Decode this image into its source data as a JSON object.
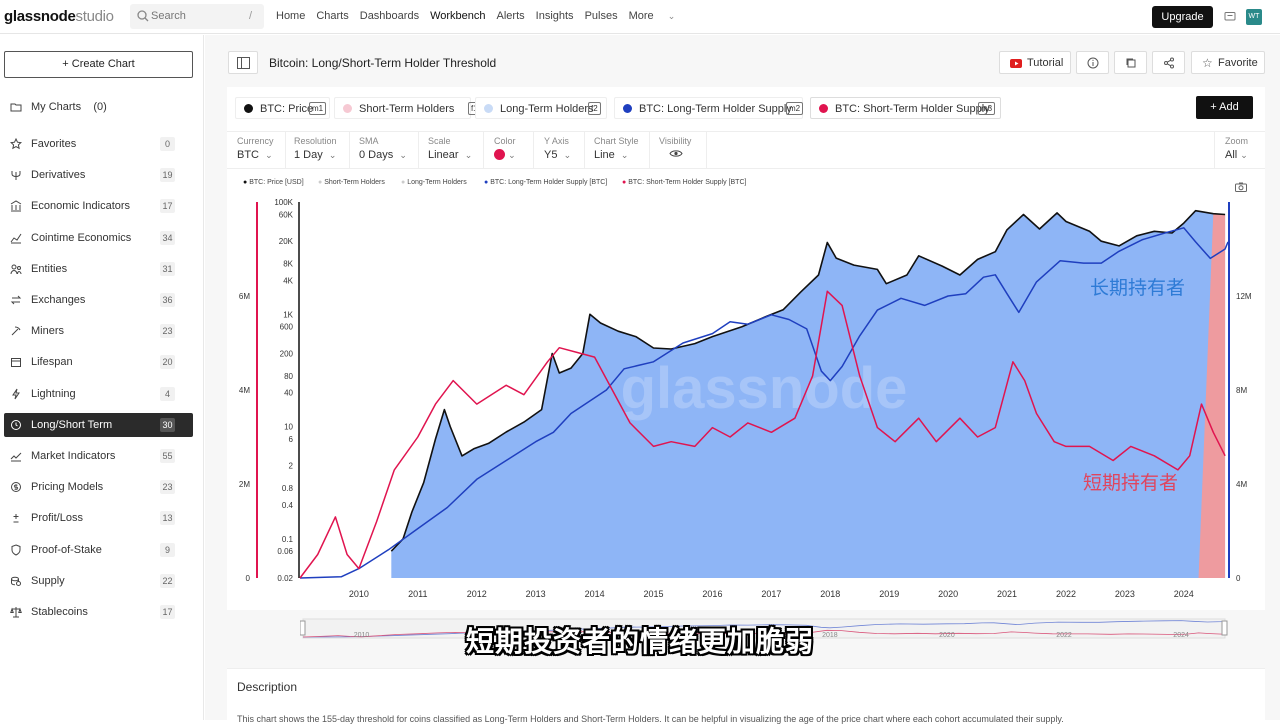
{
  "topbar": {
    "logo_main": "glassnode",
    "logo_sub": "studio",
    "search_placeholder": "Search",
    "search_shortcut": "/",
    "nav": [
      "Home",
      "Charts",
      "Dashboards",
      "Workbench",
      "Alerts",
      "Insights",
      "Pulses",
      "More"
    ],
    "upgrade_label": "Upgrade",
    "avatar_initials": "WT"
  },
  "sidebar": {
    "create_label": "+ Create Chart",
    "my_charts_label": "My Charts",
    "my_charts_count": "(0)",
    "items": [
      {
        "label": "Favorites",
        "count": "0",
        "icon": "star-icon"
      },
      {
        "label": "Derivatives",
        "count": "19",
        "icon": "trident-icon"
      },
      {
        "label": "Economic Indicators",
        "count": "17",
        "icon": "bank-icon"
      },
      {
        "label": "Cointime Economics",
        "count": "34",
        "icon": "chart-line-icon"
      },
      {
        "label": "Entities",
        "count": "31",
        "icon": "people-icon"
      },
      {
        "label": "Exchanges",
        "count": "36",
        "icon": "exchange-icon"
      },
      {
        "label": "Miners",
        "count": "23",
        "icon": "pickaxe-icon"
      },
      {
        "label": "Lifespan",
        "count": "20",
        "icon": "calendar-icon"
      },
      {
        "label": "Lightning",
        "count": "4",
        "icon": "lightning-icon"
      },
      {
        "label": "Long/Short Term",
        "count": "30",
        "icon": "clock-icon",
        "active": true
      },
      {
        "label": "Market Indicators",
        "count": "55",
        "icon": "trend-icon"
      },
      {
        "label": "Pricing Models",
        "count": "23",
        "icon": "dollar-circle-icon"
      },
      {
        "label": "Profit/Loss",
        "count": "13",
        "icon": "plus-minus-icon"
      },
      {
        "label": "Proof-of-Stake",
        "count": "9",
        "icon": "shield-icon"
      },
      {
        "label": "Supply",
        "count": "22",
        "icon": "coins-icon"
      },
      {
        "label": "Stablecoins",
        "count": "17",
        "icon": "scale-icon"
      }
    ]
  },
  "header": {
    "title": "Bitcoin: Long/Short-Term Holder Threshold",
    "tutorial_label": "Tutorial",
    "favorite_label": "Favorite",
    "add_label": "+ Add"
  },
  "metrics": [
    {
      "label": "BTC: Price",
      "key": "m1",
      "color": "#111111"
    },
    {
      "label": "Short-Term Holders",
      "key": "f1",
      "color": "#f6c9d3"
    },
    {
      "label": "Long-Term Holders",
      "key": "f2",
      "color": "#c9dbf6"
    },
    {
      "label": "BTC: Long-Term Holder Supply",
      "key": "m2",
      "color": "#1f3fbf"
    },
    {
      "label": "BTC: Short-Term Holder Supply",
      "key": "m3",
      "color": "#e0144f"
    }
  ],
  "controls": [
    {
      "label": "Currency",
      "value": "BTC"
    },
    {
      "label": "Resolution",
      "value": "1 Day"
    },
    {
      "label": "SMA",
      "value": "0 Days"
    },
    {
      "label": "Scale",
      "value": "Linear"
    },
    {
      "label": "Color",
      "value": ""
    },
    {
      "label": "Y Axis",
      "value": "Y5"
    },
    {
      "label": "Chart Style",
      "value": "Line"
    },
    {
      "label": "Visibility",
      "value": ""
    }
  ],
  "zoom": {
    "label": "Zoom",
    "value": "All"
  },
  "chart_legend": [
    "BTC: Price [USD]",
    "Short-Term Holders",
    "Long-Term Holders",
    "BTC: Long-Term Holder Supply [BTC]",
    "BTC: Short-Term Holder Supply [BTC]"
  ],
  "chart_data": {
    "type": "line",
    "title": "",
    "x_ticks": [
      "2010",
      "2011",
      "2012",
      "2013",
      "2014",
      "2015",
      "2016",
      "2017",
      "2018",
      "2019",
      "2020",
      "2021",
      "2022",
      "2023",
      "2024"
    ],
    "price_axis_log_ticks": [
      "100K",
      "60K",
      "20K",
      "8K",
      "4K",
      "1K",
      "600",
      "200",
      "80",
      "40",
      "10",
      "6",
      "2",
      "0.8",
      "0.4",
      "0.1",
      "0.06",
      "0.02"
    ],
    "left_supply_ticks": [
      "6M",
      "4M",
      "2M",
      "0"
    ],
    "right_supply_ticks": [
      "12M",
      "8M",
      "4M",
      "0"
    ],
    "x_range": [
      2009,
      2024.75
    ],
    "price_range_log": [
      0.02,
      100000
    ],
    "sth_supply_range": [
      0,
      8000000
    ],
    "lth_supply_range": [
      0,
      16000000
    ],
    "watermark": "glassnode",
    "annotations": [
      "长期持有者",
      "短期持有者"
    ],
    "series": [
      {
        "name": "BTC: Price [USD]",
        "axis": "price-log",
        "color": "#111111",
        "points": [
          [
            2010.55,
            0.06
          ],
          [
            2010.75,
            0.1
          ],
          [
            2010.9,
            0.3
          ],
          [
            2011.1,
            1
          ],
          [
            2011.3,
            6
          ],
          [
            2011.45,
            20
          ],
          [
            2011.55,
            10
          ],
          [
            2011.75,
            3
          ],
          [
            2011.95,
            4
          ],
          [
            2012.2,
            5
          ],
          [
            2012.5,
            8
          ],
          [
            2012.8,
            12
          ],
          [
            2013.1,
            20
          ],
          [
            2013.28,
            200
          ],
          [
            2013.4,
            90
          ],
          [
            2013.6,
            110
          ],
          [
            2013.8,
            200
          ],
          [
            2013.92,
            1000
          ],
          [
            2014.1,
            700
          ],
          [
            2014.4,
            500
          ],
          [
            2014.7,
            400
          ],
          [
            2015.0,
            250
          ],
          [
            2015.3,
            240
          ],
          [
            2015.7,
            300
          ],
          [
            2016.0,
            400
          ],
          [
            2016.5,
            600
          ],
          [
            2016.9,
            900
          ],
          [
            2017.2,
            1200
          ],
          [
            2017.5,
            2500
          ],
          [
            2017.8,
            5000
          ],
          [
            2017.95,
            19000
          ],
          [
            2018.1,
            10000
          ],
          [
            2018.4,
            7500
          ],
          [
            2018.8,
            6300
          ],
          [
            2018.95,
            3500
          ],
          [
            2019.3,
            5000
          ],
          [
            2019.5,
            11000
          ],
          [
            2019.9,
            7200
          ],
          [
            2020.2,
            5000
          ],
          [
            2020.5,
            9500
          ],
          [
            2020.8,
            13000
          ],
          [
            2021.0,
            32000
          ],
          [
            2021.28,
            60000
          ],
          [
            2021.55,
            33000
          ],
          [
            2021.85,
            64000
          ],
          [
            2022.0,
            45000
          ],
          [
            2022.4,
            30000
          ],
          [
            2022.6,
            20000
          ],
          [
            2022.9,
            16500
          ],
          [
            2023.2,
            25000
          ],
          [
            2023.5,
            30000
          ],
          [
            2023.8,
            28000
          ],
          [
            2024.0,
            42000
          ],
          [
            2024.2,
            70000
          ],
          [
            2024.5,
            62000
          ],
          [
            2024.7,
            60000
          ]
        ]
      },
      {
        "name": "BTC: Long-Term Holder Supply [BTC]",
        "axis": "right",
        "color": "#1f3fbf",
        "points": [
          [
            2009.0,
            0
          ],
          [
            2009.7,
            0.05
          ],
          [
            2010.0,
            0.4
          ],
          [
            2010.5,
            1.2
          ],
          [
            2011.0,
            2.1
          ],
          [
            2011.5,
            3.0
          ],
          [
            2012.0,
            4.2
          ],
          [
            2012.5,
            5.0
          ],
          [
            2013.0,
            5.8
          ],
          [
            2013.3,
            6.2
          ],
          [
            2013.6,
            7.0
          ],
          [
            2013.9,
            7.5
          ],
          [
            2014.2,
            8.0
          ],
          [
            2014.5,
            8.9
          ],
          [
            2015.0,
            9.2
          ],
          [
            2015.5,
            10.0
          ],
          [
            2016.0,
            10.4
          ],
          [
            2016.3,
            10.9
          ],
          [
            2016.6,
            10.8
          ],
          [
            2017.0,
            11.2
          ],
          [
            2017.3,
            11.0
          ],
          [
            2017.6,
            10.6
          ],
          [
            2017.85,
            8.8
          ],
          [
            2018.0,
            8.4
          ],
          [
            2018.2,
            9.0
          ],
          [
            2018.5,
            10.3
          ],
          [
            2018.8,
            11.4
          ],
          [
            2019.2,
            11.9
          ],
          [
            2019.6,
            11.6
          ],
          [
            2020.0,
            12.0
          ],
          [
            2020.3,
            12.1
          ],
          [
            2020.6,
            12.8
          ],
          [
            2020.8,
            12.9
          ],
          [
            2021.0,
            12.1
          ],
          [
            2021.2,
            11.3
          ],
          [
            2021.5,
            12.6
          ],
          [
            2021.9,
            13.5
          ],
          [
            2022.3,
            13.4
          ],
          [
            2022.6,
            13.4
          ],
          [
            2022.9,
            13.9
          ],
          [
            2023.3,
            14.4
          ],
          [
            2023.7,
            14.7
          ],
          [
            2024.0,
            14.9
          ],
          [
            2024.2,
            14.3
          ],
          [
            2024.45,
            13.6
          ],
          [
            2024.7,
            14.0
          ],
          [
            2024.75,
            14.3
          ]
        ]
      },
      {
        "name": "BTC: Short-Term Holder Supply [BTC]",
        "axis": "left",
        "color": "#e0144f",
        "points": [
          [
            2009.0,
            0
          ],
          [
            2009.3,
            0.5
          ],
          [
            2009.6,
            1.3
          ],
          [
            2009.8,
            0.5
          ],
          [
            2010.0,
            0.2
          ],
          [
            2010.3,
            1.2
          ],
          [
            2010.6,
            2.3
          ],
          [
            2011.0,
            3.0
          ],
          [
            2011.3,
            3.7
          ],
          [
            2011.6,
            4.2
          ],
          [
            2012.0,
            3.7
          ],
          [
            2012.5,
            4.1
          ],
          [
            2012.8,
            3.9
          ],
          [
            2013.2,
            4.6
          ],
          [
            2013.4,
            4.9
          ],
          [
            2013.7,
            4.8
          ],
          [
            2014.0,
            4.7
          ],
          [
            2014.3,
            4.0
          ],
          [
            2014.6,
            3.3
          ],
          [
            2015.0,
            2.8
          ],
          [
            2015.3,
            2.9
          ],
          [
            2015.7,
            2.8
          ],
          [
            2016.0,
            3.2
          ],
          [
            2016.3,
            3.0
          ],
          [
            2016.6,
            3.3
          ],
          [
            2017.0,
            3.1
          ],
          [
            2017.4,
            3.4
          ],
          [
            2017.7,
            4.3
          ],
          [
            2017.95,
            6.1
          ],
          [
            2018.2,
            5.8
          ],
          [
            2018.5,
            4.3
          ],
          [
            2018.8,
            3.2
          ],
          [
            2019.1,
            2.9
          ],
          [
            2019.5,
            3.4
          ],
          [
            2019.8,
            2.9
          ],
          [
            2020.2,
            3.4
          ],
          [
            2020.5,
            3.0
          ],
          [
            2020.8,
            3.2
          ],
          [
            2021.1,
            4.6
          ],
          [
            2021.3,
            4.2
          ],
          [
            2021.5,
            3.5
          ],
          [
            2021.8,
            2.9
          ],
          [
            2022.0,
            2.8
          ],
          [
            2022.4,
            2.8
          ],
          [
            2022.8,
            2.5
          ],
          [
            2023.1,
            2.8
          ],
          [
            2023.5,
            2.6
          ],
          [
            2023.9,
            2.3
          ],
          [
            2024.1,
            2.6
          ],
          [
            2024.3,
            3.7
          ],
          [
            2024.5,
            3.1
          ],
          [
            2024.7,
            2.6
          ]
        ]
      }
    ],
    "lth_fill_color": "#7aa8f5",
    "sth_fill_color": "#f39a9a",
    "sth_fill_range": [
      2024.25,
      2024.7
    ]
  },
  "subtitle_cn": "短期投资者的情绪更加脆弱",
  "description": {
    "title": "Description",
    "text": "This chart shows the 155-day threshold for coins classified as Long-Term Holders and Short-Term Holders. It can be helpful in visualizing the age of the price chart where each cohort accumulated their supply."
  }
}
